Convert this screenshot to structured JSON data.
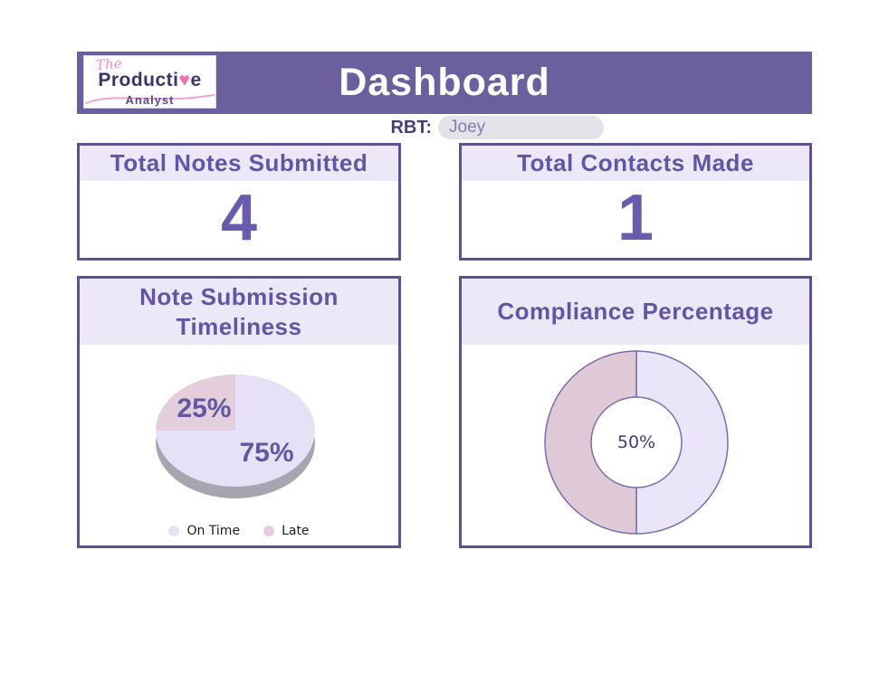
{
  "header": {
    "title": "Dashboard"
  },
  "logo": {
    "the": "The",
    "word_head": "Producti",
    "heart": "♥",
    "word_tail": "e",
    "subtitle": "Analyst"
  },
  "rbt": {
    "label": "RBT:",
    "value": "Joey"
  },
  "cards": [
    {
      "title": "Total Notes Submitted",
      "value": "4"
    },
    {
      "title": "Total Contacts Made",
      "value": "1"
    },
    {
      "title": "Note Submission Timeliness"
    },
    {
      "title": "Compliance Percentage"
    }
  ],
  "chart_data": [
    {
      "type": "pie",
      "title": "Note Submission Timeliness",
      "labels": [
        "On Time",
        "Late"
      ],
      "values": [
        75,
        25
      ],
      "data_labels": [
        "75%",
        "25%"
      ],
      "colors": [
        "#e6e1f6",
        "#e4cedb"
      ],
      "shadow_color": "#a8a5b0",
      "label_color": "#6456a3",
      "style": "3d",
      "legend_position": "bottom"
    },
    {
      "type": "donut",
      "title": "Compliance Percentage",
      "values": [
        50,
        50
      ],
      "colors": [
        "#eae5f8",
        "#dfc9d7"
      ],
      "stroke_color": "#7c6cab",
      "center_label": "50%",
      "center_label_color": "#3d3d70"
    }
  ]
}
